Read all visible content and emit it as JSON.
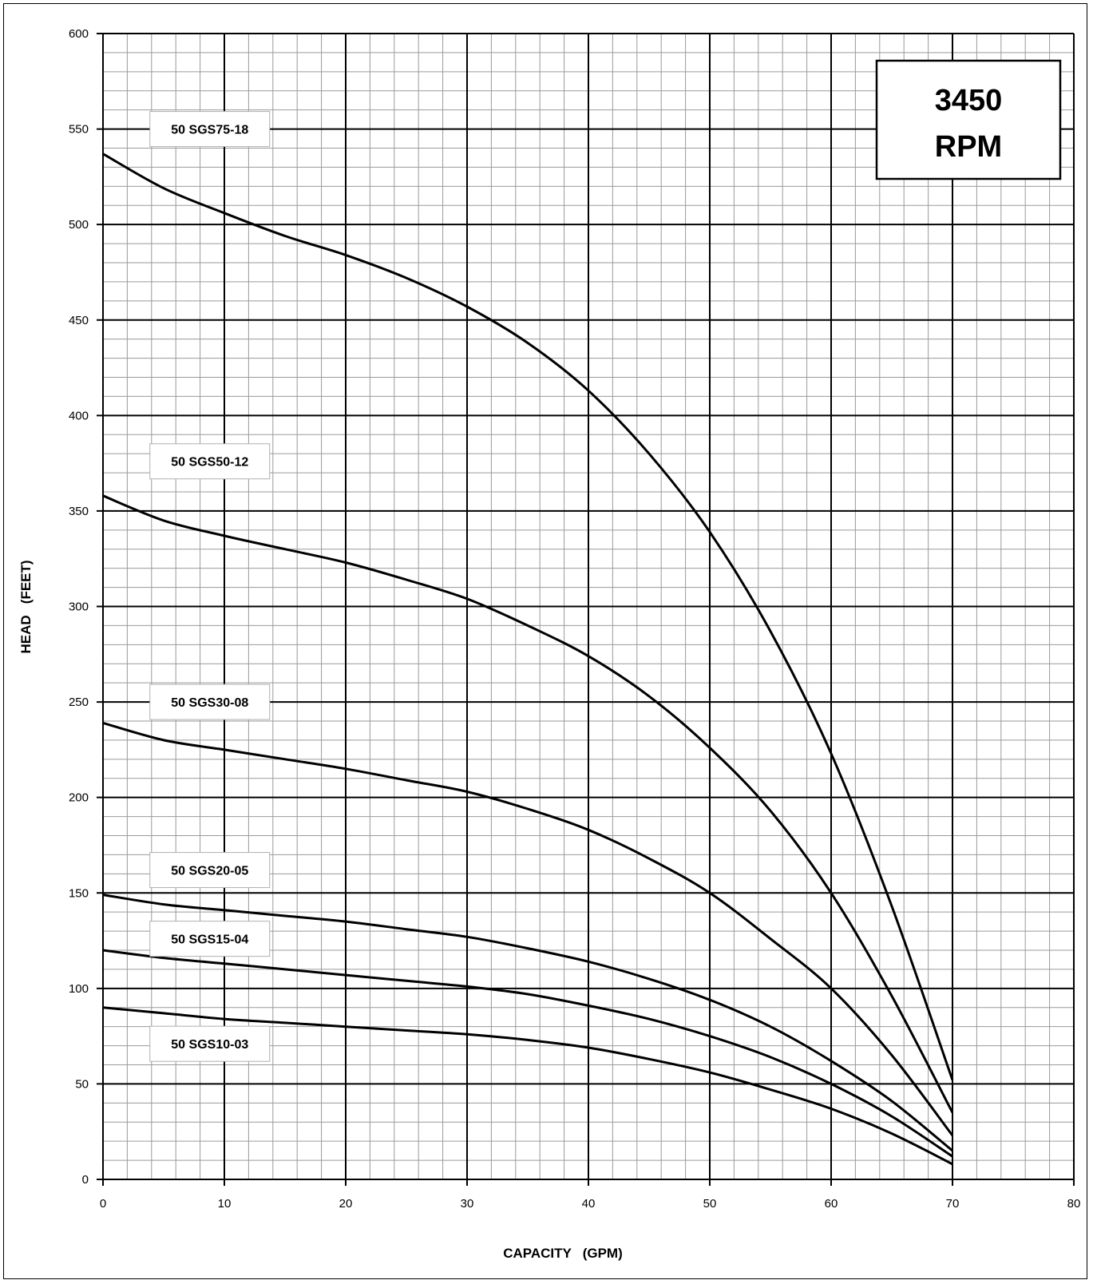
{
  "chart_data": {
    "type": "line",
    "title": "",
    "xlabel": "CAPACITY   (GPM)",
    "ylabel": "HEAD   (FEET)",
    "xlim": [
      0,
      80
    ],
    "ylim": [
      0,
      600
    ],
    "x_ticks": [
      0,
      10,
      20,
      30,
      40,
      50,
      60,
      70,
      80
    ],
    "y_ticks": [
      0,
      50,
      100,
      150,
      200,
      250,
      300,
      350,
      400,
      450,
      500,
      550,
      600
    ],
    "x_minor_step": 2,
    "y_minor_step": 10,
    "grid": true,
    "badge": {
      "line1": "3450",
      "line2": "RPM"
    },
    "series": [
      {
        "name": "50 SGS75-18",
        "points": [
          [
            0,
            537
          ],
          [
            5,
            519
          ],
          [
            10,
            506
          ],
          [
            15,
            494
          ],
          [
            20,
            484
          ],
          [
            25,
            472
          ],
          [
            30,
            457
          ],
          [
            35,
            438
          ],
          [
            40,
            413
          ],
          [
            45,
            380
          ],
          [
            50,
            339
          ],
          [
            55,
            287
          ],
          [
            60,
            223
          ],
          [
            65,
            143
          ],
          [
            70,
            52
          ]
        ]
      },
      {
        "name": "50 SGS50-12",
        "points": [
          [
            0,
            358
          ],
          [
            5,
            345
          ],
          [
            10,
            337
          ],
          [
            15,
            330
          ],
          [
            20,
            323
          ],
          [
            25,
            314
          ],
          [
            30,
            304
          ],
          [
            35,
            290
          ],
          [
            40,
            274
          ],
          [
            45,
            253
          ],
          [
            50,
            226
          ],
          [
            55,
            193
          ],
          [
            60,
            150
          ],
          [
            65,
            96
          ],
          [
            70,
            35
          ]
        ]
      },
      {
        "name": "50 SGS30-08",
        "points": [
          [
            0,
            239
          ],
          [
            5,
            230
          ],
          [
            10,
            225
          ],
          [
            15,
            220
          ],
          [
            20,
            215
          ],
          [
            25,
            209
          ],
          [
            30,
            203
          ],
          [
            35,
            194
          ],
          [
            40,
            183
          ],
          [
            45,
            168
          ],
          [
            50,
            150
          ],
          [
            55,
            126
          ],
          [
            60,
            100
          ],
          [
            65,
            65
          ],
          [
            70,
            23
          ]
        ]
      },
      {
        "name": "50 SGS20-05",
        "points": [
          [
            0,
            149
          ],
          [
            5,
            144
          ],
          [
            10,
            141
          ],
          [
            15,
            138
          ],
          [
            20,
            135
          ],
          [
            25,
            131
          ],
          [
            30,
            127
          ],
          [
            35,
            121
          ],
          [
            40,
            114
          ],
          [
            45,
            105
          ],
          [
            50,
            94
          ],
          [
            55,
            80
          ],
          [
            60,
            62
          ],
          [
            65,
            41
          ],
          [
            70,
            15
          ]
        ]
      },
      {
        "name": "50 SGS15-04",
        "points": [
          [
            0,
            120
          ],
          [
            5,
            116
          ],
          [
            10,
            113
          ],
          [
            15,
            110
          ],
          [
            20,
            107
          ],
          [
            25,
            104
          ],
          [
            30,
            101
          ],
          [
            35,
            97
          ],
          [
            40,
            91
          ],
          [
            45,
            84
          ],
          [
            50,
            75
          ],
          [
            55,
            64
          ],
          [
            60,
            50
          ],
          [
            65,
            33
          ],
          [
            70,
            12
          ]
        ]
      },
      {
        "name": "50 SGS10-03",
        "points": [
          [
            0,
            90
          ],
          [
            5,
            87
          ],
          [
            10,
            84
          ],
          [
            15,
            82
          ],
          [
            20,
            80
          ],
          [
            25,
            78
          ],
          [
            30,
            76
          ],
          [
            35,
            73
          ],
          [
            40,
            69
          ],
          [
            45,
            63
          ],
          [
            50,
            56
          ],
          [
            55,
            47
          ],
          [
            60,
            37
          ],
          [
            65,
            24
          ],
          [
            70,
            8
          ]
        ]
      }
    ],
    "label_positions": [
      {
        "series": "50 SGS75-18",
        "x": 8.8,
        "y": 550
      },
      {
        "series": "50 SGS50-12",
        "x": 8.8,
        "y": 376
      },
      {
        "series": "50 SGS30-08",
        "x": 8.8,
        "y": 250
      },
      {
        "series": "50 SGS20-05",
        "x": 8.8,
        "y": 162
      },
      {
        "series": "50 SGS15-04",
        "x": 8.8,
        "y": 126
      },
      {
        "series": "50 SGS10-03",
        "x": 8.8,
        "y": 71
      }
    ]
  }
}
